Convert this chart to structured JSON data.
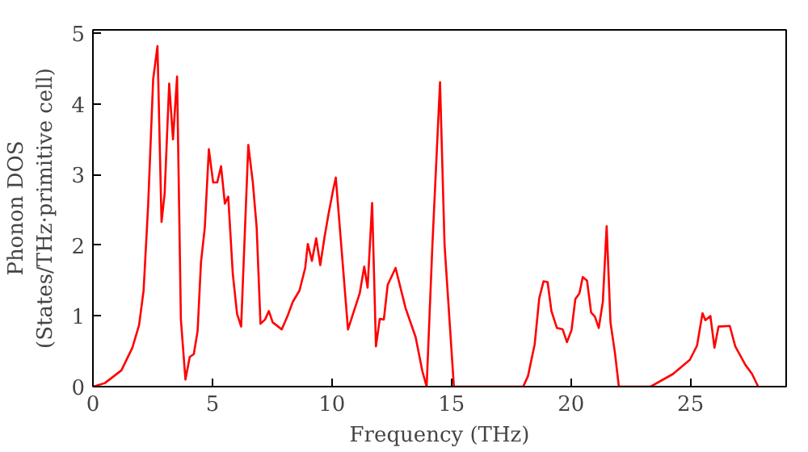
{
  "chart_data": {
    "type": "line",
    "xlabel": "Frequency (THz)",
    "ylabel": "Phonon DOS\n(States/THz·primitive cell)",
    "xlim": [
      0,
      29
    ],
    "ylim": [
      0,
      5.05
    ],
    "xticks": [
      0,
      5,
      10,
      15,
      20,
      25
    ],
    "yticks": [
      0,
      1,
      2,
      3,
      4,
      5
    ],
    "grid": false,
    "marker": "none",
    "line_style": "solid",
    "series": [
      {
        "color": "#ff0000",
        "x": [
          0,
          0.5,
          1.19,
          1.65,
          1.93,
          2.12,
          2.31,
          2.52,
          2.7,
          2.87,
          3.0,
          3.19,
          3.35,
          3.52,
          3.68,
          3.87,
          4.05,
          4.22,
          4.38,
          4.52,
          4.68,
          4.85,
          5.03,
          5.2,
          5.36,
          5.52,
          5.66,
          5.85,
          6.03,
          6.2,
          6.5,
          6.69,
          6.85,
          7.01,
          7.2,
          7.36,
          7.52,
          7.9,
          8.13,
          8.36,
          8.64,
          8.88,
          8.99,
          9.16,
          9.34,
          9.51,
          9.69,
          9.86,
          10.04,
          10.16,
          10.39,
          10.67,
          11.16,
          11.35,
          11.49,
          11.68,
          11.84,
          12.0,
          12.17,
          12.33,
          12.66,
          13.08,
          13.5,
          13.78,
          13.96,
          14.2,
          14.52,
          14.71,
          15.1,
          18.0,
          18.2,
          18.48,
          18.67,
          18.85,
          19.02,
          19.18,
          19.41,
          19.65,
          19.83,
          20.02,
          20.18,
          20.35,
          20.49,
          20.67,
          20.84,
          21.0,
          21.16,
          21.33,
          21.49,
          21.65,
          21.84,
          22.0,
          23.33,
          24.27,
          24.97,
          25.27,
          25.5,
          25.62,
          25.83,
          26.0,
          26.17,
          26.64,
          26.87,
          27.29,
          27.57,
          27.83
        ],
        "values": [
          0,
          0.05,
          0.23,
          0.55,
          0.87,
          1.36,
          2.57,
          4.35,
          4.82,
          2.33,
          2.73,
          4.29,
          3.5,
          4.39,
          0.95,
          0.1,
          0.42,
          0.46,
          0.79,
          1.76,
          2.25,
          3.36,
          2.89,
          2.89,
          3.12,
          2.59,
          2.69,
          1.6,
          1.03,
          0.85,
          3.42,
          2.89,
          2.25,
          0.89,
          0.95,
          1.07,
          0.91,
          0.81,
          0.99,
          1.2,
          1.36,
          1.68,
          2.02,
          1.78,
          2.1,
          1.72,
          2.12,
          2.45,
          2.77,
          2.96,
          1.99,
          0.81,
          1.32,
          1.7,
          1.4,
          2.6,
          0.57,
          0.96,
          0.95,
          1.44,
          1.68,
          1.11,
          0.7,
          0.22,
          0,
          2.0,
          4.31,
          2.0,
          0,
          0,
          0.15,
          0.6,
          1.25,
          1.49,
          1.48,
          1.07,
          0.83,
          0.81,
          0.63,
          0.8,
          1.24,
          1.32,
          1.55,
          1.5,
          1.05,
          0.99,
          0.83,
          1.2,
          2.27,
          0.91,
          0.47,
          0,
          0,
          0.18,
          0.38,
          0.58,
          1.04,
          0.94,
          1.0,
          0.55,
          0.85,
          0.86,
          0.57,
          0.31,
          0.18,
          0
        ]
      }
    ]
  }
}
